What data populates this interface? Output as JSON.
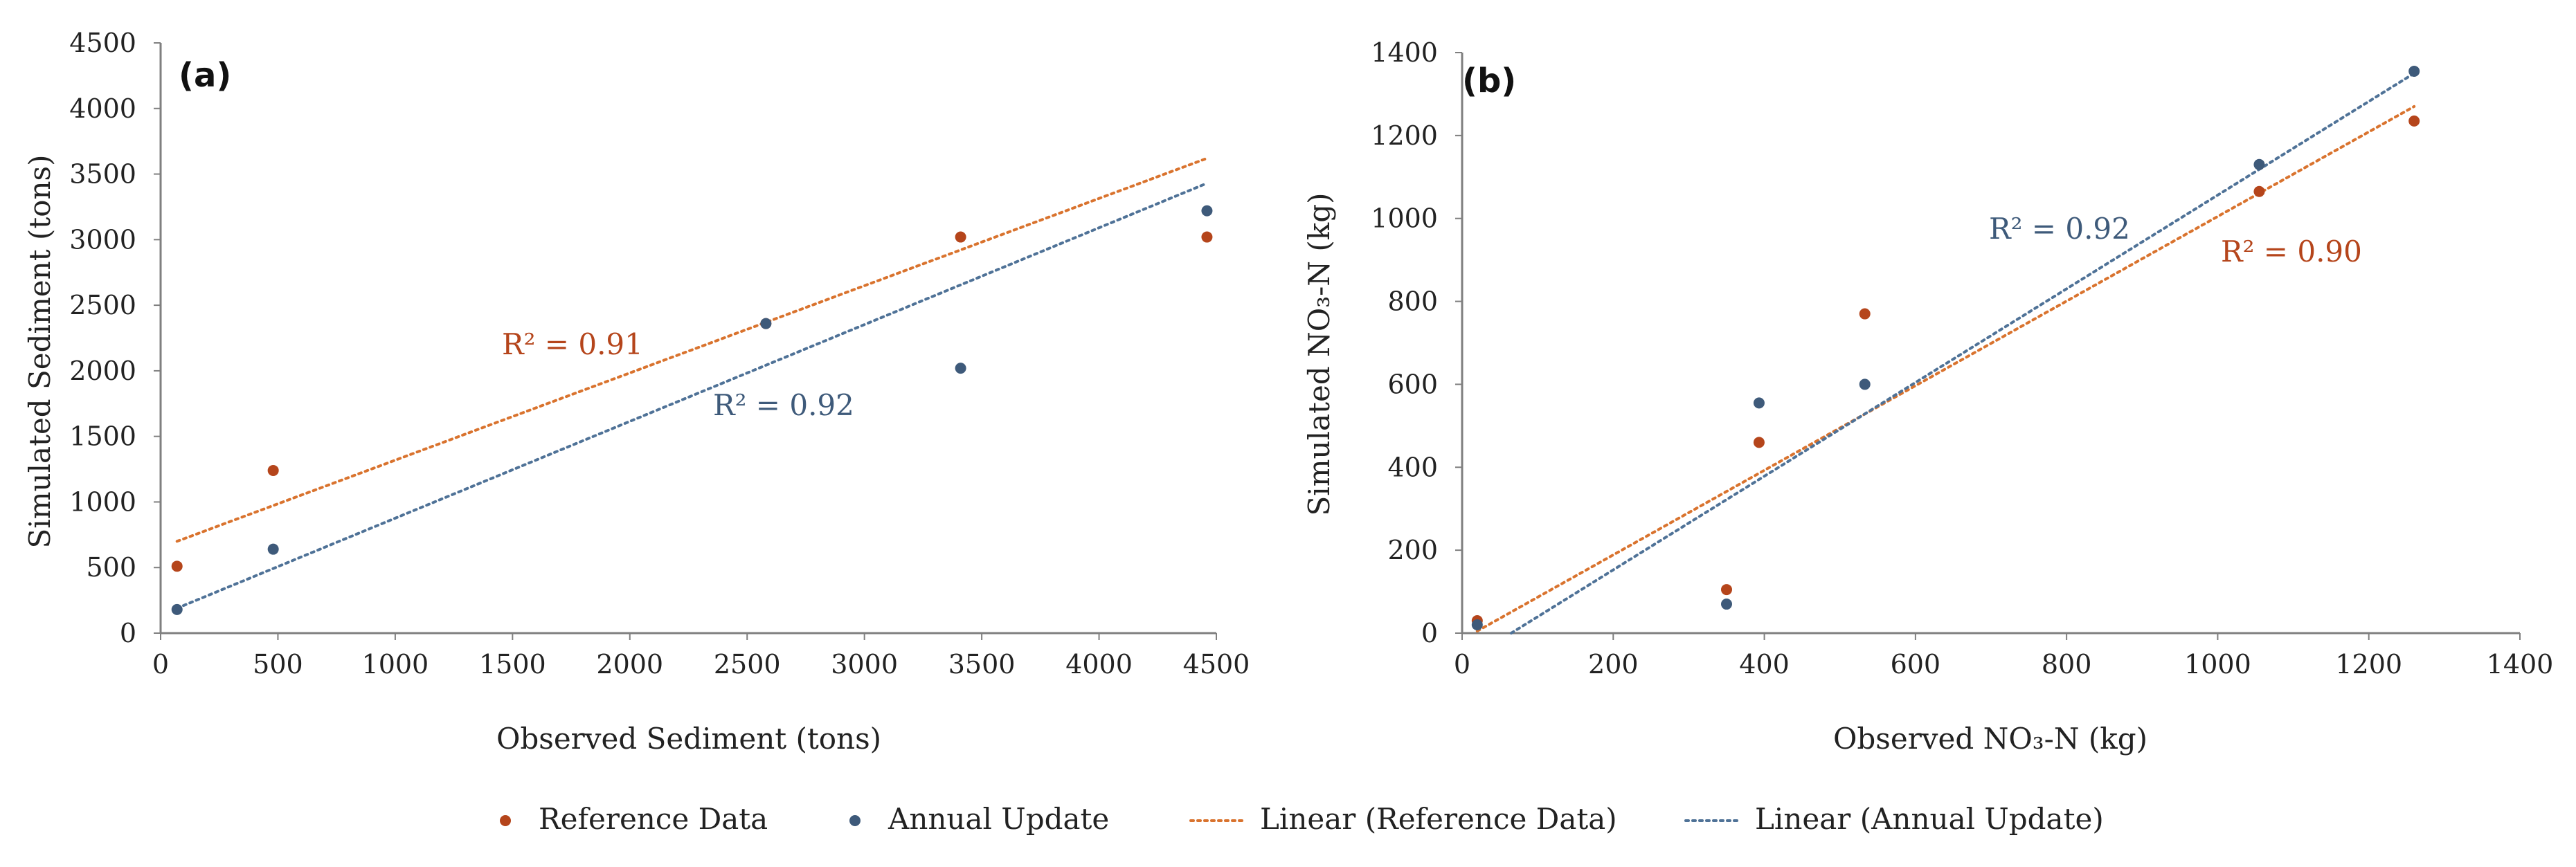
{
  "colors": {
    "reference": "#b5451b",
    "annual": "#3e5a7a",
    "axis": "#7f7f7f"
  },
  "legend": {
    "items": [
      {
        "label": "Reference Data",
        "kind": "point",
        "color": "#b5451b"
      },
      {
        "label": "Annual Update",
        "kind": "point",
        "color": "#3e5a7a"
      },
      {
        "label": "Linear (Reference Data)",
        "kind": "line",
        "color": "#d9732e"
      },
      {
        "label": "Linear (Annual Update)",
        "kind": "line",
        "color": "#4f7297"
      }
    ]
  },
  "chart_data": [
    {
      "type": "scatter",
      "panel_label": "(a)",
      "xlabel": "Observed Sediment (tons)",
      "ylabel": "Simulated Sediment (tons)",
      "xlim": [
        0,
        4500
      ],
      "ylim": [
        0,
        4500
      ],
      "xticks": [
        0,
        500,
        1000,
        1500,
        2000,
        2500,
        3000,
        3500,
        4000,
        4500
      ],
      "yticks": [
        0,
        500,
        1000,
        1500,
        2000,
        2500,
        3000,
        3500,
        4000,
        4500
      ],
      "series": [
        {
          "name": "Reference Data",
          "color": "#b5451b",
          "x": [
            70,
            480,
            2580,
            3410,
            4460
          ],
          "y": [
            510,
            1240,
            2360,
            3020,
            3020
          ],
          "trend": {
            "x": [
              70,
              4460
            ],
            "y": [
              700,
              3620
            ],
            "color": "#d9732e"
          },
          "r2_label": "R² = 0.91"
        },
        {
          "name": "Annual Update",
          "color": "#3e5a7a",
          "x": [
            70,
            480,
            2580,
            3410,
            4460
          ],
          "y": [
            180,
            640,
            2360,
            2020,
            3220
          ],
          "trend": {
            "x": [
              70,
              4460
            ],
            "y": [
              190,
              3430
            ],
            "color": "#4f7297"
          },
          "r2_label": "R² = 0.92"
        }
      ]
    },
    {
      "type": "scatter",
      "panel_label": "(b)",
      "xlabel": "Observed NO₃-N (kg)",
      "ylabel": "Simulated NO₃-N (kg)",
      "xlim": [
        0,
        1400
      ],
      "ylim": [
        0,
        1400
      ],
      "xticks": [
        0,
        200,
        400,
        600,
        800,
        1000,
        1200,
        1400
      ],
      "yticks": [
        0,
        200,
        400,
        600,
        800,
        1000,
        1200,
        1400
      ],
      "series": [
        {
          "name": "Reference Data",
          "color": "#b5451b",
          "x": [
            20,
            350,
            393,
            533,
            1055,
            1260
          ],
          "y": [
            30,
            105,
            460,
            770,
            1065,
            1235
          ],
          "trend": {
            "x": [
              20,
              1260
            ],
            "y": [
              5,
              1270
            ],
            "color": "#d9732e"
          },
          "r2_label": "R² = 0.90"
        },
        {
          "name": "Annual Update",
          "color": "#3e5a7a",
          "x": [
            20,
            350,
            393,
            533,
            1055,
            1260
          ],
          "y": [
            20,
            70,
            555,
            600,
            1130,
            1355
          ],
          "trend": {
            "x": [
              65,
              1260
            ],
            "y": [
              0,
              1350
            ],
            "color": "#4f7297"
          },
          "r2_label": "R² = 0.92"
        }
      ]
    }
  ]
}
